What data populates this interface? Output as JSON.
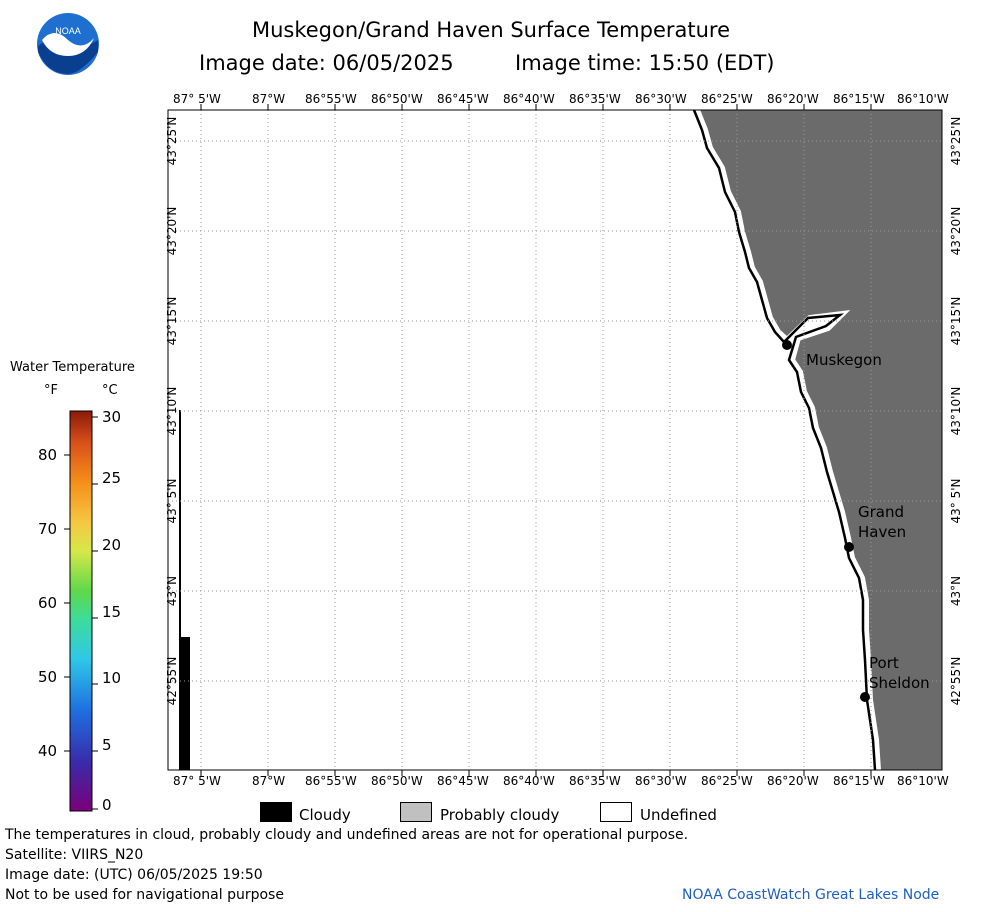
{
  "header": {
    "title": "Muskegon/Grand Haven Surface Temperature",
    "image_date": "Image date: 06/05/2025",
    "image_time": "Image time: 15:50 (EDT)"
  },
  "logo": {
    "text": "NOAA"
  },
  "map": {
    "lon_labels": [
      "87° 5'W",
      "87°W",
      "86°55'W",
      "86°50'W",
      "86°45'W",
      "86°40'W",
      "86°35'W",
      "86°30'W",
      "86°25'W",
      "86°20'W",
      "86°15'W",
      "86°10'W"
    ],
    "lat_labels": [
      "43°25'N",
      "43°20'N",
      "43°15'N",
      "43°10'N",
      "43° 5'N",
      "43°N",
      "42°55'N"
    ],
    "places": [
      {
        "name": "Muskegon",
        "lines": [
          "Muskegon"
        ]
      },
      {
        "name": "Grand Haven",
        "lines": [
          "Grand",
          "Haven"
        ]
      },
      {
        "name": "Port Sheldon",
        "lines": [
          "Port",
          "Sheldon"
        ]
      }
    ],
    "colors": {
      "land": "#6b6b6b",
      "water": "#ffffff",
      "cloud": "#000000",
      "grid": "#999999"
    }
  },
  "colorbar": {
    "title": "Water Temperature",
    "unit_f": "°F",
    "unit_c": "°C",
    "f_ticks": [
      "80",
      "70",
      "60",
      "50",
      "40"
    ],
    "c_ticks": [
      "30",
      "25",
      "20",
      "15",
      "10",
      "5",
      "0"
    ]
  },
  "legend": {
    "cloudy": "Cloudy",
    "probably_cloudy": "Probably cloudy",
    "undefined": "Undefined",
    "colors": {
      "cloudy": "#000000",
      "probably_cloudy": "#c0c0c0",
      "undefined": "#ffffff"
    }
  },
  "footer": {
    "disclaimer": "The temperatures in cloud, probably cloudy and undefined areas are not for operational purpose.",
    "satellite": "Satellite: VIIRS_N20",
    "utc_date": "Image date: (UTC) 06/05/2025  19:50",
    "navigation": "Not to be used for navigational purpose",
    "credit": "NOAA CoastWatch Great Lakes Node"
  }
}
